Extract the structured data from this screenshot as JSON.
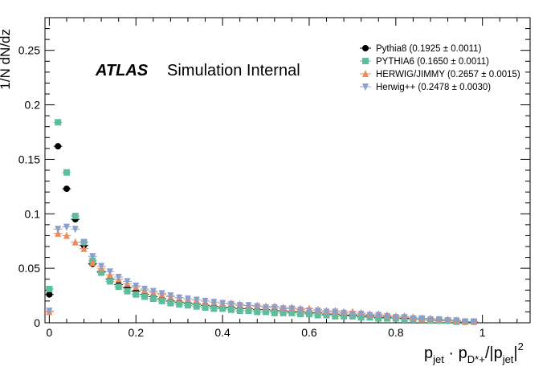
{
  "chart_data": {
    "type": "scatter",
    "ylabel": "1/N dN/dz",
    "xlabel": {
      "main1": "p",
      "sub1": "jet",
      "dot": " · ",
      "main2": "p",
      "sub2": "D*+",
      "main3": "/|p",
      "sub3": "jet",
      "main4": "|",
      "sup4": "2"
    },
    "annotation": {
      "atlas": "ATLAS",
      "text": "Simulation Internal"
    },
    "xlim": [
      -0.01,
      1.11
    ],
    "ylim": [
      0,
      0.28
    ],
    "xticks": [
      0,
      0.2,
      0.4,
      0.6,
      0.8,
      1
    ],
    "xtick_labels": [
      "0",
      "0.2",
      "0.4",
      "0.6",
      "0.8",
      "1"
    ],
    "yticks": [
      0,
      0.05,
      0.1,
      0.15,
      0.2,
      0.25
    ],
    "ytick_labels": [
      "0",
      "0.05",
      "0.1",
      "0.15",
      "0.2",
      "0.25"
    ],
    "legend_position": "top-right",
    "x": [
      0.0,
      0.02,
      0.04,
      0.06,
      0.08,
      0.1,
      0.12,
      0.14,
      0.16,
      0.18,
      0.2,
      0.22,
      0.24,
      0.26,
      0.28,
      0.3,
      0.32,
      0.34,
      0.36,
      0.38,
      0.4,
      0.42,
      0.44,
      0.46,
      0.48,
      0.5,
      0.52,
      0.54,
      0.56,
      0.58,
      0.6,
      0.62,
      0.64,
      0.66,
      0.68,
      0.7,
      0.72,
      0.74,
      0.76,
      0.78,
      0.8,
      0.82,
      0.84,
      0.86,
      0.88,
      0.9,
      0.92,
      0.94,
      0.96,
      0.98
    ],
    "series": [
      {
        "name": "Pythia8 (0.1925 ± 0.0011)",
        "color": "#000000",
        "marker": "circle",
        "values": [
          0.026,
          0.162,
          0.123,
          0.095,
          0.071,
          0.054,
          0.047,
          0.04,
          0.035,
          0.032,
          0.029,
          0.026,
          0.024,
          0.022,
          0.02,
          0.019,
          0.018,
          0.017,
          0.016,
          0.015,
          0.014,
          0.014,
          0.013,
          0.013,
          0.012,
          0.012,
          0.011,
          0.011,
          0.01,
          0.01,
          0.009,
          0.009,
          0.008,
          0.008,
          0.007,
          0.007,
          0.006,
          0.006,
          0.005,
          0.005,
          0.004,
          0.004,
          0.003,
          0.003,
          0.003,
          0.002,
          0.002,
          0.002,
          0.001,
          0.001
        ]
      },
      {
        "name": "PYTHIA6 (0.1650 ± 0.0011)",
        "color": "#5ebd9b",
        "marker": "square",
        "values": [
          0.031,
          0.184,
          0.138,
          0.098,
          0.074,
          0.057,
          0.046,
          0.038,
          0.033,
          0.029,
          0.026,
          0.024,
          0.022,
          0.02,
          0.018,
          0.017,
          0.016,
          0.015,
          0.014,
          0.013,
          0.013,
          0.012,
          0.011,
          0.011,
          0.01,
          0.01,
          0.009,
          0.009,
          0.009,
          0.008,
          0.008,
          0.007,
          0.007,
          0.006,
          0.006,
          0.006,
          0.005,
          0.005,
          0.004,
          0.004,
          0.004,
          0.003,
          0.003,
          0.003,
          0.002,
          0.002,
          0.002,
          0.001,
          0.001,
          0.001
        ]
      },
      {
        "name": "HERWIG/JIMMY (0.2657 ± 0.0015)",
        "color": "#ef8a5a",
        "marker": "triangle-up",
        "values": [
          0.01,
          0.082,
          0.08,
          0.074,
          0.068,
          0.055,
          0.05,
          0.044,
          0.04,
          0.036,
          0.033,
          0.03,
          0.028,
          0.026,
          0.024,
          0.023,
          0.022,
          0.021,
          0.02,
          0.019,
          0.018,
          0.018,
          0.017,
          0.016,
          0.016,
          0.015,
          0.015,
          0.014,
          0.014,
          0.013,
          0.013,
          0.012,
          0.011,
          0.011,
          0.01,
          0.01,
          0.009,
          0.008,
          0.008,
          0.007,
          0.006,
          0.006,
          0.005,
          0.004,
          0.004,
          0.003,
          0.003,
          0.002,
          0.001,
          0.001
        ]
      },
      {
        "name": "Herwig++ (0.2478 ± 0.0030)",
        "color": "#8b9fcc",
        "marker": "triangle-down",
        "values": [
          0.011,
          0.086,
          0.088,
          0.086,
          0.074,
          0.061,
          0.052,
          0.047,
          0.042,
          0.038,
          0.034,
          0.031,
          0.029,
          0.027,
          0.025,
          0.023,
          0.022,
          0.021,
          0.02,
          0.019,
          0.018,
          0.017,
          0.016,
          0.016,
          0.015,
          0.014,
          0.014,
          0.013,
          0.013,
          0.012,
          0.011,
          0.011,
          0.01,
          0.01,
          0.009,
          0.008,
          0.008,
          0.007,
          0.007,
          0.006,
          0.005,
          0.005,
          0.004,
          0.004,
          0.003,
          0.003,
          0.002,
          0.002,
          0.001,
          0.001
        ]
      }
    ]
  }
}
